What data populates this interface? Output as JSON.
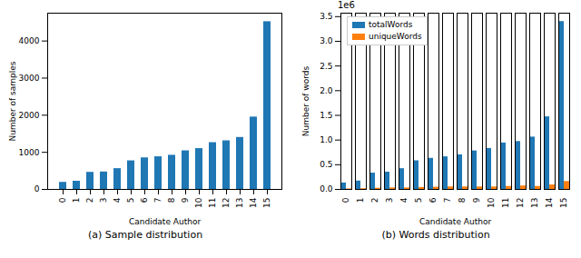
{
  "chart_data": [
    {
      "type": "bar",
      "caption": "(a) Sample distribution",
      "x_label": "Candidate Author",
      "y_label": "Number of samples",
      "categories": [
        "0",
        "1",
        "2",
        "3",
        "4",
        "5",
        "6",
        "7",
        "8",
        "9",
        "10",
        "11",
        "12",
        "13",
        "14",
        "15"
      ],
      "values": [
        190,
        220,
        460,
        470,
        560,
        770,
        850,
        880,
        920,
        1040,
        1100,
        1260,
        1310,
        1400,
        1950,
        4520
      ],
      "color": "#1f77b4",
      "ylim": [
        0,
        4750
      ],
      "yticks": [
        0,
        1000,
        2000,
        3000,
        4000
      ]
    },
    {
      "type": "bar",
      "caption": "(b) Words distribution",
      "x_label": "Candidate Author",
      "y_label": "Number of words",
      "annotation": "1e6",
      "legend": "upper left",
      "categories": [
        "0",
        "1",
        "2",
        "3",
        "4",
        "5",
        "6",
        "7",
        "8",
        "9",
        "10",
        "11",
        "12",
        "13",
        "14",
        "15"
      ],
      "series": [
        {
          "name": "totalWords",
          "color": "#1f77b4",
          "values": [
            0.13,
            0.17,
            0.33,
            0.35,
            0.42,
            0.58,
            0.63,
            0.66,
            0.7,
            0.78,
            0.83,
            0.94,
            0.97,
            1.06,
            1.47,
            3.4
          ]
        },
        {
          "name": "uniqueWords",
          "color": "#ff7f0e",
          "values": [
            0.01,
            0.015,
            0.025,
            0.03,
            0.03,
            0.04,
            0.045,
            0.05,
            0.05,
            0.05,
            0.05,
            0.06,
            0.07,
            0.06,
            0.09,
            0.16
          ]
        }
      ],
      "ylim": [
        0,
        3.57
      ],
      "yticks": [
        {
          "value": 0,
          "label": "0.0"
        },
        0.5,
        {
          "value": 1,
          "label": "1.0"
        },
        1.5,
        {
          "value": 2,
          "label": "2.0"
        },
        2.5,
        {
          "value": 3,
          "label": "3.0"
        },
        3.5
      ]
    }
  ]
}
